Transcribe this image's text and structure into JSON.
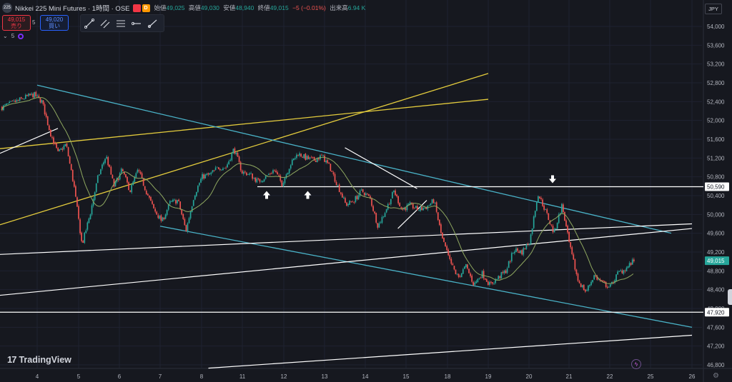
{
  "header": {
    "symbol_logo": "225",
    "title": "Nikkei 225 Mini Futures · 1時間 · OSE",
    "badge_red": "",
    "badge_orange": "D",
    "open_label": "始値",
    "open_value": "49,025",
    "high_label": "高値",
    "high_value": "49,030",
    "low_label": "安値",
    "low_value": "48,940",
    "close_label": "終値",
    "close_value": "49,015",
    "change": "−5 (−0.01%)",
    "volume_label": "出来高",
    "volume_value": "6.94 K"
  },
  "trade": {
    "sell_price": "49,015",
    "sell_label": "売り",
    "spread": "5",
    "buy_price": "49,020",
    "buy_label": "買い"
  },
  "indicator": {
    "label": "5"
  },
  "currency_button": "JPY",
  "tradingview_logo": "TradingView",
  "tradingview_mark": "17",
  "colors": {
    "background": "#16181f",
    "up": "#26a69a",
    "down": "#ef5350",
    "ma": "#8fa860",
    "trend_blue": "#4ab3c8",
    "trend_yellow": "#e4cc3d",
    "trend_white": "#ffffff",
    "price_label": "#26a69a"
  },
  "chart_data": {
    "type": "candlestick",
    "timeframe": "1h",
    "price_axis_labels": [
      "54,000",
      "53,600",
      "53,200",
      "52,800",
      "52,400",
      "52,000",
      "51,600",
      "51,200",
      "50,800",
      "50,400",
      "50,000",
      "49,600",
      "49,200",
      "48,800",
      "48,400",
      "48,000",
      "47,600",
      "47,200",
      "46,800"
    ],
    "time_axis_labels": [
      "4",
      "5",
      "6",
      "7",
      "8",
      "11",
      "12",
      "13",
      "14",
      "15",
      "18",
      "19",
      "20",
      "21",
      "22",
      "25",
      "26"
    ],
    "ylim": [
      46700,
      54150
    ],
    "horizontal_levels": [
      {
        "value": 50590,
        "label": "50,590"
      },
      {
        "value": 47920,
        "label": "47,920"
      }
    ],
    "last_price": {
      "value": 49015,
      "label": "49,015"
    },
    "price_path": [
      [
        0,
        52280
      ],
      [
        1,
        52350
      ],
      [
        2,
        52420
      ],
      [
        3,
        52500
      ],
      [
        4,
        52550
      ],
      [
        5,
        52400
      ],
      [
        6,
        51750
      ],
      [
        7,
        51300
      ],
      [
        8,
        51500
      ],
      [
        9,
        50600
      ],
      [
        10,
        49350
      ],
      [
        11,
        50000
      ],
      [
        12,
        50800
      ],
      [
        13,
        51250
      ],
      [
        14,
        50600
      ],
      [
        15,
        50950
      ],
      [
        16,
        50500
      ],
      [
        17,
        50950
      ],
      [
        18,
        50500
      ],
      [
        19,
        50100
      ],
      [
        20,
        49850
      ],
      [
        21,
        50250
      ],
      [
        22,
        50300
      ],
      [
        23,
        49650
      ],
      [
        24,
        50400
      ],
      [
        25,
        50800
      ],
      [
        26,
        50850
      ],
      [
        27,
        51000
      ],
      [
        28,
        51000
      ],
      [
        29,
        51400
      ],
      [
        30,
        50900
      ],
      [
        31,
        50850
      ],
      [
        32,
        50700
      ],
      [
        33,
        50800
      ],
      [
        34,
        50950
      ],
      [
        35,
        50650
      ],
      [
        36,
        51050
      ],
      [
        37,
        51300
      ],
      [
        38,
        51200
      ],
      [
        39,
        51150
      ],
      [
        40,
        51250
      ],
      [
        41,
        51000
      ],
      [
        42,
        50600
      ],
      [
        43,
        50200
      ],
      [
        44,
        50300
      ],
      [
        45,
        50500
      ],
      [
        46,
        50350
      ],
      [
        47,
        49750
      ],
      [
        48,
        50100
      ],
      [
        49,
        50500
      ],
      [
        50,
        50100
      ],
      [
        51,
        50200
      ],
      [
        52,
        50100
      ],
      [
        53,
        50150
      ],
      [
        54,
        50300
      ],
      [
        55,
        49500
      ],
      [
        56,
        49000
      ],
      [
        57,
        48650
      ],
      [
        58,
        48900
      ],
      [
        59,
        48500
      ],
      [
        60,
        48750
      ],
      [
        61,
        48500
      ],
      [
        62,
        48650
      ],
      [
        63,
        48800
      ],
      [
        64,
        49250
      ],
      [
        65,
        49200
      ],
      [
        66,
        49450
      ],
      [
        67,
        50450
      ],
      [
        68,
        50050
      ],
      [
        69,
        49600
      ],
      [
        70,
        50200
      ],
      [
        71,
        49300
      ],
      [
        72,
        48600
      ],
      [
        73,
        48350
      ],
      [
        74,
        48700
      ],
      [
        75,
        48550
      ],
      [
        76,
        48450
      ],
      [
        77,
        48750
      ],
      [
        78,
        48850
      ],
      [
        79,
        49015
      ]
    ],
    "trendlines": {
      "blue": [
        {
          "from": [
            "4",
            52750
          ],
          "to": [
            "25.5",
            49600
          ]
        },
        {
          "from": [
            "7",
            49750
          ],
          "to": [
            "26",
            47600
          ]
        }
      ],
      "yellow": [
        {
          "from": [
            "3.5",
            49780
          ],
          "to": [
            "19",
            53000
          ]
        },
        {
          "from": [
            "3.5",
            51400
          ],
          "to": [
            "19",
            52450
          ]
        }
      ],
      "white": [
        {
          "from": [
            "3.5",
            49150
          ],
          "to": [
            "26",
            49800
          ]
        },
        {
          "from": [
            "3.5",
            48280
          ],
          "to": [
            "26",
            49700
          ]
        },
        {
          "from": [
            "8.5",
            46730
          ],
          "to": [
            "26",
            47430
          ]
        },
        {
          "from": [
            "3.5",
            51300
          ],
          "to": [
            "4.5",
            51830
          ]
        },
        {
          "from": [
            "13.5",
            51420
          ],
          "to": [
            "15.8",
            50550
          ]
        },
        {
          "from": [
            "14.8",
            49700
          ],
          "to": [
            "16.5",
            50300
          ]
        }
      ]
    },
    "arrow_markers": [
      {
        "direction": "up",
        "x": "11.5"
      },
      {
        "direction": "up",
        "x": "12.5"
      },
      {
        "direction": "down",
        "x": "20.5"
      }
    ]
  }
}
